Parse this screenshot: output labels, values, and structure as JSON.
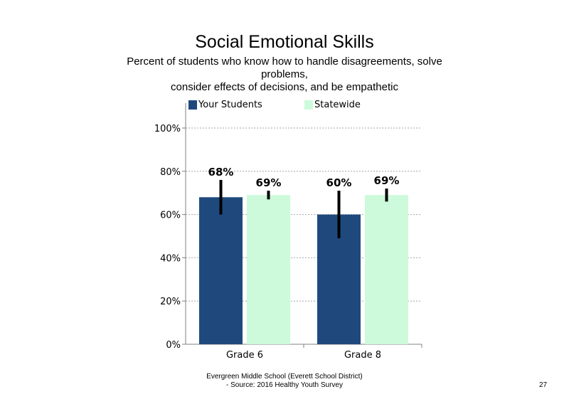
{
  "title": "Social Emotional Skills",
  "subtitle_lines": [
    "Percent of students who know how to handle disagreements, solve",
    "problems,",
    "consider effects of decisions, and be empathetic"
  ],
  "footer_lines": [
    "Evergreen Middle School (Everett School District)",
    "- Source: 2016 Healthy Youth Survey"
  ],
  "page_number": "27",
  "colors": {
    "your_students": "#1F497D",
    "statewide": "#CCFADB",
    "axis": "#808080",
    "grid": "#A6A6A6"
  },
  "chart_data": {
    "type": "bar",
    "categories": [
      "Grade 6",
      "Grade 8"
    ],
    "series": [
      {
        "name": "Your Students",
        "values": [
          68,
          60
        ],
        "labels": [
          "68%",
          "60%"
        ],
        "error_low": [
          60,
          49
        ],
        "error_high": [
          76,
          71
        ]
      },
      {
        "name": "Statewide",
        "values": [
          69,
          69
        ],
        "labels": [
          "69%",
          "69%"
        ],
        "error_low": [
          67,
          66
        ],
        "error_high": [
          71,
          72
        ]
      }
    ],
    "ylim": [
      0,
      100
    ],
    "yticks": [
      "0%",
      "20%",
      "40%",
      "60%",
      "80%",
      "100%"
    ],
    "ytick_values": [
      0,
      20,
      40,
      60,
      80,
      100
    ],
    "xlabel": "",
    "ylabel": "",
    "grid": true,
    "legend_position": "top"
  }
}
